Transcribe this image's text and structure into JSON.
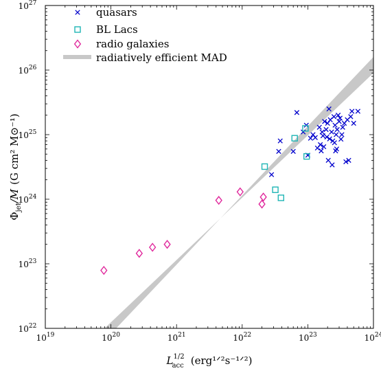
{
  "chart_data": {
    "type": "scatter",
    "xscale": "log",
    "yscale": "log",
    "xlim": [
      1e+19,
      1e+24
    ],
    "ylim": [
      1e+22,
      1e+27
    ],
    "x_ticks": [
      {
        "value": 1e+19,
        "base": "10",
        "exp": "19"
      },
      {
        "value": 1e+20,
        "base": "10",
        "exp": "20"
      },
      {
        "value": 1e+21,
        "base": "10",
        "exp": "21"
      },
      {
        "value": 1e+22,
        "base": "10",
        "exp": "22"
      },
      {
        "value": 1e+23,
        "base": "10",
        "exp": "23"
      },
      {
        "value": 1e+24,
        "base": "10",
        "exp": "24"
      }
    ],
    "y_ticks": [
      {
        "value": 1e+22,
        "base": "10",
        "exp": "22"
      },
      {
        "value": 1e+23,
        "base": "10",
        "exp": "23"
      },
      {
        "value": 1e+24,
        "base": "10",
        "exp": "24"
      },
      {
        "value": 1e+25,
        "base": "10",
        "exp": "25"
      },
      {
        "value": 1e+26,
        "base": "10",
        "exp": "26"
      },
      {
        "value": 1e+27,
        "base": "10",
        "exp": "27"
      }
    ],
    "xlabel": {
      "main": "L",
      "sup": "1/2",
      "sub": "acc",
      "units": "(erg¹ᐟ²s⁻¹ᐟ²)"
    },
    "ylabel": {
      "main": "Φ",
      "sub": "jet",
      "mid": "/M",
      "units": "(G cm² M⊙⁻¹)"
    },
    "legend_position": "top-left",
    "grid": false,
    "band": {
      "name": "radiatively efficient MAD",
      "color": "#c8c8c8",
      "lower": [
        [
          8e+19,
          1e+22
        ],
        [
          1e+24,
          9e+25
        ]
      ],
      "upper": [
        [
          1.2e+20,
          1e+22
        ],
        [
          1e+24,
          1.6e+26
        ]
      ]
    },
    "series": [
      {
        "name": "quasars",
        "marker": "x",
        "color": "#0000cc",
        "points": [
          [
            6.8e+22,
            2.2e+25
          ],
          [
            2.8e+22,
            2.4e+24
          ],
          [
            3.6e+22,
            5.5e+24
          ],
          [
            3.8e+22,
            8e+24
          ],
          [
            6e+22,
            5.5e+24
          ],
          [
            8.5e+22,
            1.1e+25
          ],
          [
            9.5e+22,
            1.4e+25
          ],
          [
            1e+23,
            4.8e+24
          ],
          [
            1.1e+23,
            8.8e+24
          ],
          [
            1.2e+23,
            1e+25
          ],
          [
            1.3e+23,
            9e+24
          ],
          [
            1.4e+23,
            6.2e+24
          ],
          [
            1.5e+23,
            1.3e+25
          ],
          [
            1.6e+23,
            5.6e+24
          ],
          [
            1.7e+23,
            9.6e+24
          ],
          [
            1.8e+23,
            1.6e+25
          ],
          [
            1.9e+23,
            1.2e+25
          ],
          [
            2e+23,
            1.5e+25
          ],
          [
            2.1e+23,
            2.5e+25
          ],
          [
            2.2e+23,
            1.7e+25
          ],
          [
            2.3e+23,
            1.1e+25
          ],
          [
            2.4e+23,
            8e+24
          ],
          [
            2.5e+23,
            1.9e+25
          ],
          [
            2.6e+23,
            1.4e+25
          ],
          [
            2.7e+23,
            1e+25
          ],
          [
            2.8e+23,
            1.2e+25
          ],
          [
            2.9e+23,
            2e+25
          ],
          [
            3e+23,
            1.6e+25
          ],
          [
            3.2e+23,
            8.5e+24
          ],
          [
            3.4e+23,
            1.3e+25
          ],
          [
            1.75e+23,
            6.5e+24
          ],
          [
            2.05e+23,
            4e+24
          ],
          [
            2.15e+23,
            8.6e+24
          ],
          [
            2.35e+23,
            3.4e+24
          ],
          [
            2.55e+23,
            7.5e+24
          ],
          [
            2.65e+23,
            5.6e+24
          ],
          [
            2.75e+23,
            6e+24
          ],
          [
            3.1e+23,
            1.8e+25
          ],
          [
            3.3e+23,
            1e+25
          ],
          [
            3.6e+23,
            1.5e+25
          ],
          [
            3.8e+23,
            3.8e+24
          ],
          [
            4e+23,
            1.7e+25
          ],
          [
            4.2e+23,
            4e+24
          ],
          [
            4.5e+23,
            1.9e+25
          ],
          [
            4.7e+23,
            2.3e+25
          ],
          [
            5e+23,
            1.5e+25
          ],
          [
            5.8e+23,
            2.3e+25
          ],
          [
            1.55e+23,
            7e+24
          ],
          [
            1.65e+23,
            1.1e+25
          ],
          [
            1.95e+23,
            9.2e+24
          ]
        ]
      },
      {
        "name": "BL Lacs",
        "marker": "square",
        "color": "#1fb5b5",
        "points": [
          [
            2.2e+22,
            3.2e+24
          ],
          [
            3.2e+22,
            1.4e+24
          ],
          [
            3.9e+22,
            1.05e+24
          ],
          [
            6.3e+22,
            8.8e+24
          ],
          [
            9.2e+22,
            1.25e+25
          ],
          [
            9.6e+22,
            4.6e+24
          ]
        ]
      },
      {
        "name": "radio galaxies",
        "marker": "diamond",
        "color": "#e0289c",
        "points": [
          [
            7.8e+19,
            7.9e+22
          ],
          [
            2.7e+20,
            1.45e+23
          ],
          [
            4.3e+20,
            1.8e+23
          ],
          [
            7.2e+20,
            2e+23
          ],
          [
            4.4e+21,
            9.6e+23
          ],
          [
            9.3e+21,
            1.3e+24
          ],
          [
            2e+22,
            8.4e+23
          ],
          [
            2.1e+22,
            1.08e+24
          ]
        ]
      }
    ]
  }
}
